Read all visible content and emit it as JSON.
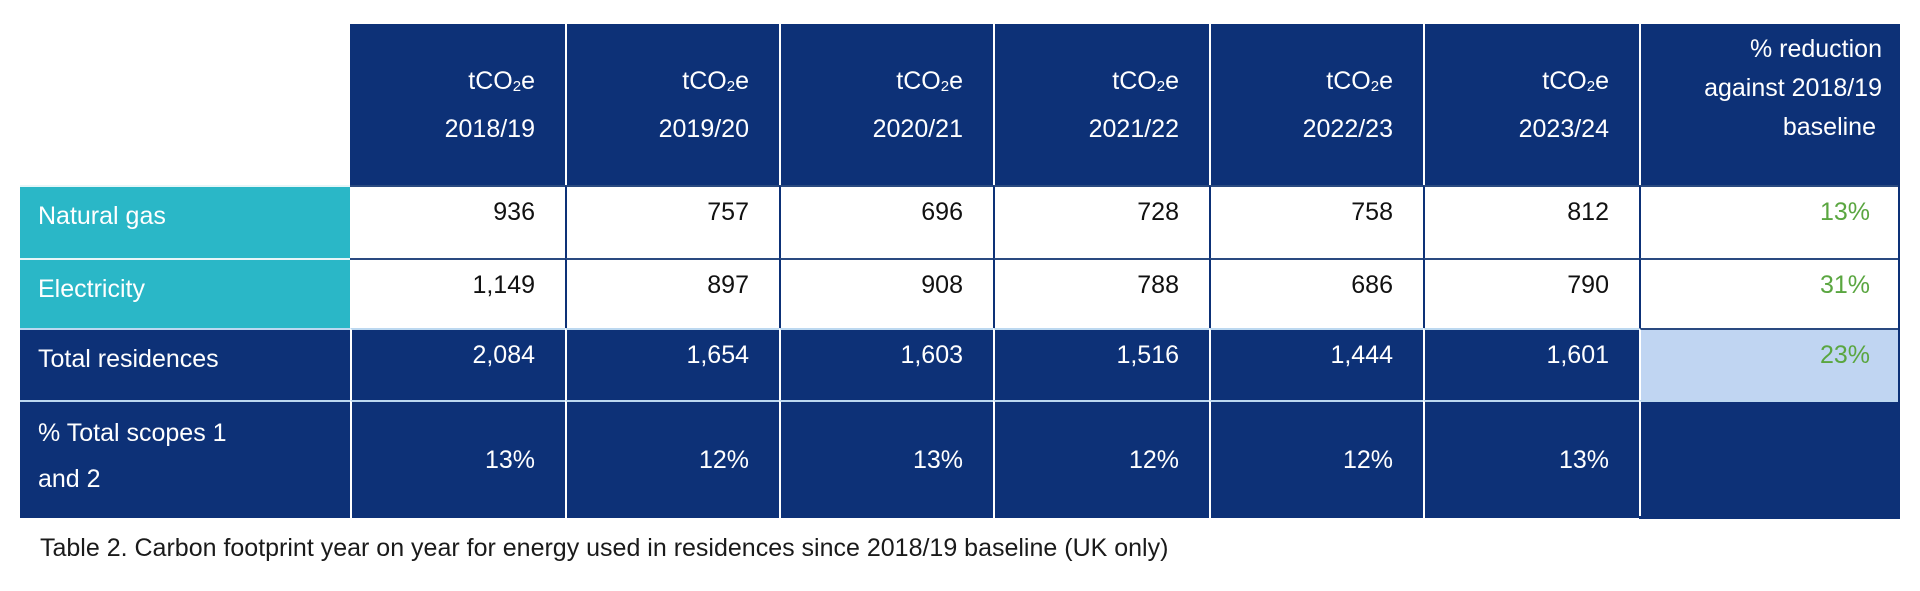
{
  "table": {
    "headers": [
      {
        "unit_prefix": "tCO",
        "unit_sub": "2",
        "unit_suffix": "e",
        "year": "2018/19"
      },
      {
        "unit_prefix": "tCO",
        "unit_sub": "2",
        "unit_suffix": "e",
        "year": "2019/20"
      },
      {
        "unit_prefix": "tCO",
        "unit_sub": "2",
        "unit_suffix": "e",
        "year": "2020/21"
      },
      {
        "unit_prefix": "tCO",
        "unit_sub": "2",
        "unit_suffix": "e",
        "year": "2021/22"
      },
      {
        "unit_prefix": "tCO",
        "unit_sub": "2",
        "unit_suffix": "e",
        "year": "2022/23"
      },
      {
        "unit_prefix": "tCO",
        "unit_sub": "2",
        "unit_suffix": "e",
        "year": "2023/24"
      }
    ],
    "reduction_header": {
      "line1": "% reduction",
      "line2": "against 2018/19",
      "line3": "baseline"
    },
    "rows": [
      {
        "label": "Natural gas",
        "values": [
          "936",
          "757",
          "696",
          "728",
          "758",
          "812"
        ],
        "reduction": "13%"
      },
      {
        "label": "Electricity",
        "values": [
          "1,149",
          "897",
          "908",
          "788",
          "686",
          "790"
        ],
        "reduction": "31%"
      },
      {
        "label": "Total residences",
        "values": [
          "2,084",
          "1,654",
          "1,603",
          "1,516",
          "1,444",
          "1,601"
        ],
        "reduction": "23%"
      },
      {
        "label": "% Total scopes 1 and 2",
        "label_line1": "% Total scopes 1",
        "label_line2": "and 2",
        "values": [
          "13%",
          "12%",
          "13%",
          "12%",
          "12%",
          "13%"
        ],
        "reduction": ""
      }
    ]
  },
  "caption": "Table 2. Carbon footprint year on year for energy used in residences since 2018/19 baseline (UK only)",
  "colors": {
    "header_navy": "#0d3177",
    "label_teal": "#2ab7c7",
    "reduction_green": "#5aa640",
    "highlight_lightblue": "#c0d5f2"
  }
}
